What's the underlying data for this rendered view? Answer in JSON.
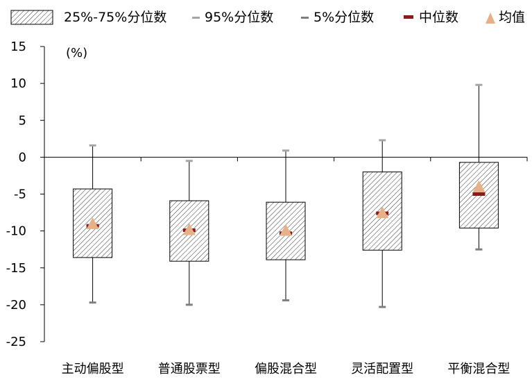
{
  "chart_data": {
    "type": "box",
    "unit_label": "(%)",
    "ylim": [
      -25,
      15
    ],
    "yticks": [
      15,
      10,
      5,
      0,
      -5,
      -10,
      -15,
      -20,
      -25
    ],
    "categories": [
      "主动偏股型",
      "普通股票型",
      "偏股混合型",
      "灵活配置型",
      "平衡混合型"
    ],
    "legend": {
      "box": "25%-75%分位数",
      "p95": "95%分位数",
      "p5": "5%分位数",
      "median": "中位数",
      "mean": "均值"
    },
    "series": {
      "p95": [
        1.6,
        -0.5,
        0.9,
        2.3,
        9.8
      ],
      "p75": [
        -4.3,
        -5.9,
        -6.1,
        -2.0,
        -0.7
      ],
      "median": [
        -9.3,
        -9.9,
        -10.3,
        -7.6,
        -5.0
      ],
      "mean": [
        -9.0,
        -9.8,
        -9.9,
        -7.5,
        -4.0
      ],
      "p25": [
        -13.6,
        -14.1,
        -13.9,
        -12.6,
        -9.6
      ],
      "p5": [
        -19.7,
        -20.0,
        -19.4,
        -20.3,
        -12.5
      ]
    },
    "colors": {
      "median": "#8b1a1a",
      "mean": "#e8b088",
      "p95": "#a6a6a6",
      "p5": "#7f7f7f",
      "box_border": "#000000",
      "hatch": "#000000"
    }
  }
}
